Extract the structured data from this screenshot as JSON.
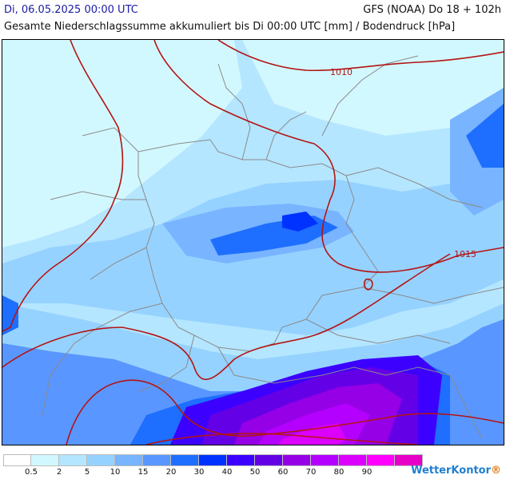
{
  "header": {
    "date": "Di, 06.05.2025 00:00 UTC",
    "model": "GFS (NOAA) Do 18 + 102h",
    "subtitle": "Gesamte Niederschlagssumme akkumuliert bis Di 00:00 UTC [mm] / Bodendruck [hPa]"
  },
  "isobars": [
    {
      "label": "1010"
    },
    {
      "label": "1015"
    }
  ],
  "legend": {
    "colors": [
      "#ffffff",
      "#d2f8ff",
      "#b4e6ff",
      "#96d2ff",
      "#78b4ff",
      "#5a96ff",
      "#1e6eff",
      "#0032ff",
      "#3c00ff",
      "#6400e6",
      "#9600e6",
      "#b400ff",
      "#dc00ff",
      "#ff00ff",
      "#e600c8"
    ],
    "ticks": [
      "0.5",
      "2",
      "5",
      "10",
      "15",
      "20",
      "30",
      "40",
      "50",
      "60",
      "70",
      "80",
      "90"
    ]
  },
  "brand": {
    "name": "WetterKontor",
    "accent": "®"
  }
}
